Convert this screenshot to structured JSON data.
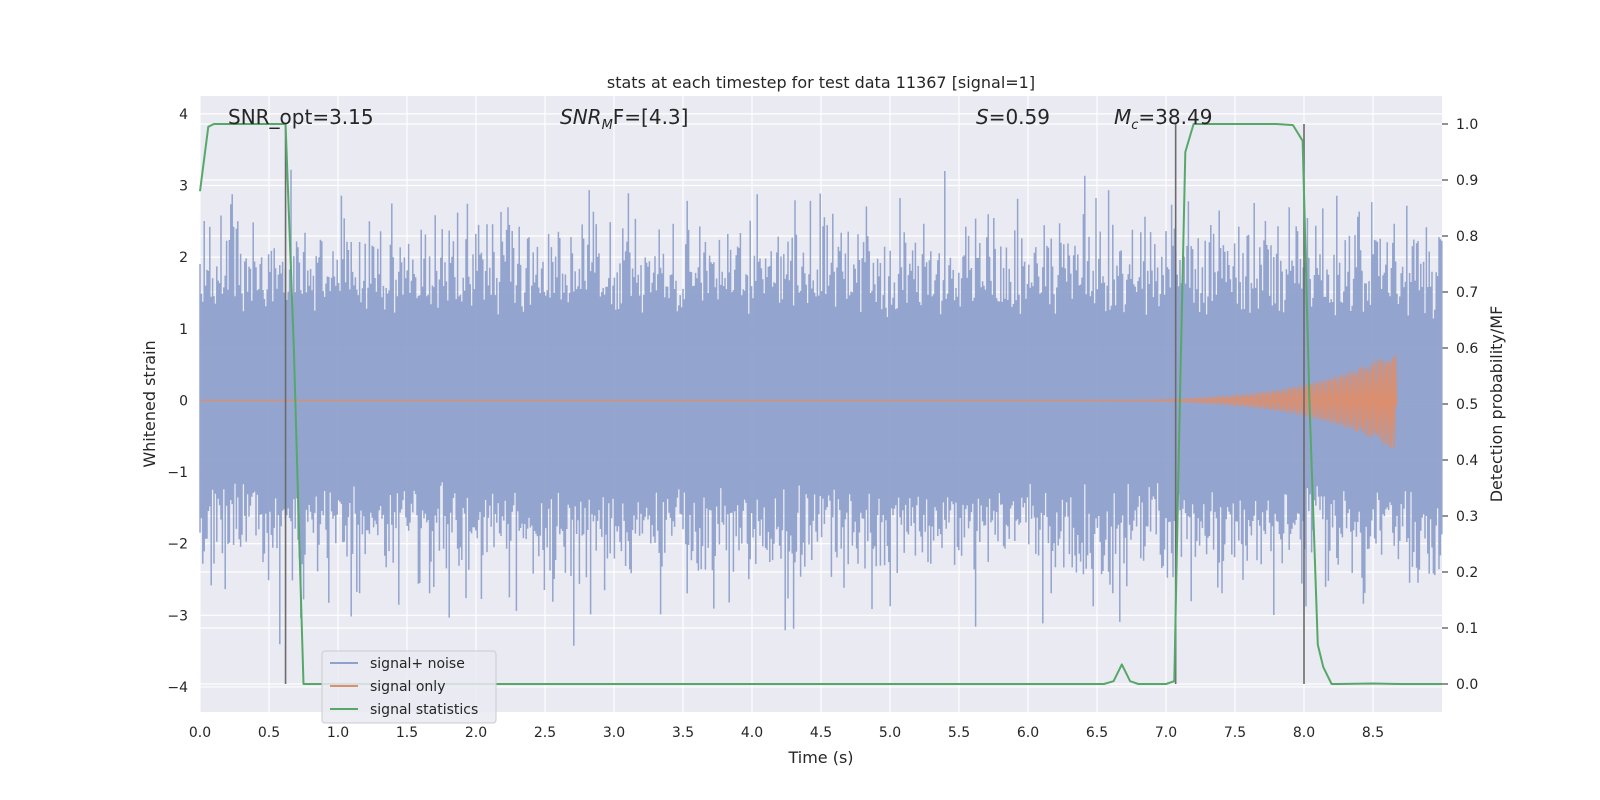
{
  "chart_data": {
    "type": "line",
    "title": "stats at each timestep for test data 11367 [signal=1]",
    "xlabel": "Time (s)",
    "ylabel": "Whitened strain",
    "ylabel_right": "Detection probability/MF",
    "xlim": [
      0.0,
      9.0
    ],
    "ylim": [
      -4.35,
      4.25
    ],
    "ylim_right": [
      -0.05,
      1.05
    ],
    "grid": true,
    "x_ticks": [
      "0.0",
      "0.5",
      "1.0",
      "1.5",
      "2.0",
      "2.5",
      "3.0",
      "3.5",
      "4.0",
      "4.5",
      "5.0",
      "5.5",
      "6.0",
      "6.5",
      "7.0",
      "7.5",
      "8.0",
      "8.5"
    ],
    "y_ticks": [
      "4",
      "3",
      "2",
      "1",
      "0",
      "−1",
      "−2",
      "−3",
      "−4"
    ],
    "y_right_ticks": [
      "1.0",
      "0.9",
      "0.8",
      "0.7",
      "0.6",
      "0.5",
      "0.4",
      "0.3",
      "0.2",
      "0.1",
      "0.0"
    ],
    "annotations": {
      "snr_opt": "SNR_opt=3.15",
      "snr_mf_main": "SNR",
      "snr_mf_sub": "M",
      "snr_mf_rest": "F=[4.3]",
      "s_main": "S",
      "s_rest": "=0.59",
      "mc_main": "M",
      "mc_sub": "c",
      "mc_rest": "=38.49"
    },
    "vertical_markers": [
      0.62,
      7.07,
      8.0
    ],
    "series": [
      {
        "name": "signal+ noise",
        "color": "#8ea0cb",
        "noise_band": {
          "typical_low": -1.5,
          "typical_high": 1.5,
          "peak_low": -3.6,
          "peak_high": 3.9
        }
      },
      {
        "name": "signal only",
        "color": "#dd8e6c",
        "chirp_end_x": 8.67,
        "chirp_peak": 0.7
      },
      {
        "name": "signal statistics",
        "color": "#55a868",
        "axis": "right",
        "x": [
          0.0,
          0.06,
          0.1,
          0.14,
          0.2,
          0.3,
          0.4,
          0.5,
          0.6,
          0.62,
          0.68,
          0.72,
          0.75,
          0.8,
          1.0,
          2.0,
          3.0,
          4.0,
          5.0,
          6.0,
          6.55,
          6.62,
          6.68,
          6.74,
          6.8,
          7.0,
          7.06,
          7.1,
          7.14,
          7.2,
          7.25,
          7.4,
          7.6,
          7.8,
          7.92,
          7.99,
          8.04,
          8.1,
          8.14,
          8.2,
          8.25,
          8.5,
          8.7,
          9.0
        ],
        "y": [
          0.88,
          0.995,
          1.0,
          1.0,
          1.0,
          1.0,
          1.0,
          1.0,
          1.0,
          1.0,
          0.6,
          0.25,
          0.0,
          0.0,
          0.0,
          0.0,
          0.0,
          0.0,
          0.0,
          0.0,
          0.0,
          0.005,
          0.035,
          0.005,
          0.0,
          0.0,
          0.005,
          0.5,
          0.95,
          1.0,
          1.0,
          1.0,
          1.0,
          1.0,
          0.998,
          0.97,
          0.5,
          0.07,
          0.03,
          0.0,
          0.0,
          0.001,
          0.0,
          0.0
        ]
      }
    ],
    "legend": {
      "placement": "lower-left",
      "entries": [
        "signal+ noise",
        "signal only",
        "signal statistics"
      ]
    },
    "colors": {
      "plot_background": "#eaeaf2",
      "grid": "#ffffff",
      "marker_line": "#6b6b6b"
    }
  }
}
